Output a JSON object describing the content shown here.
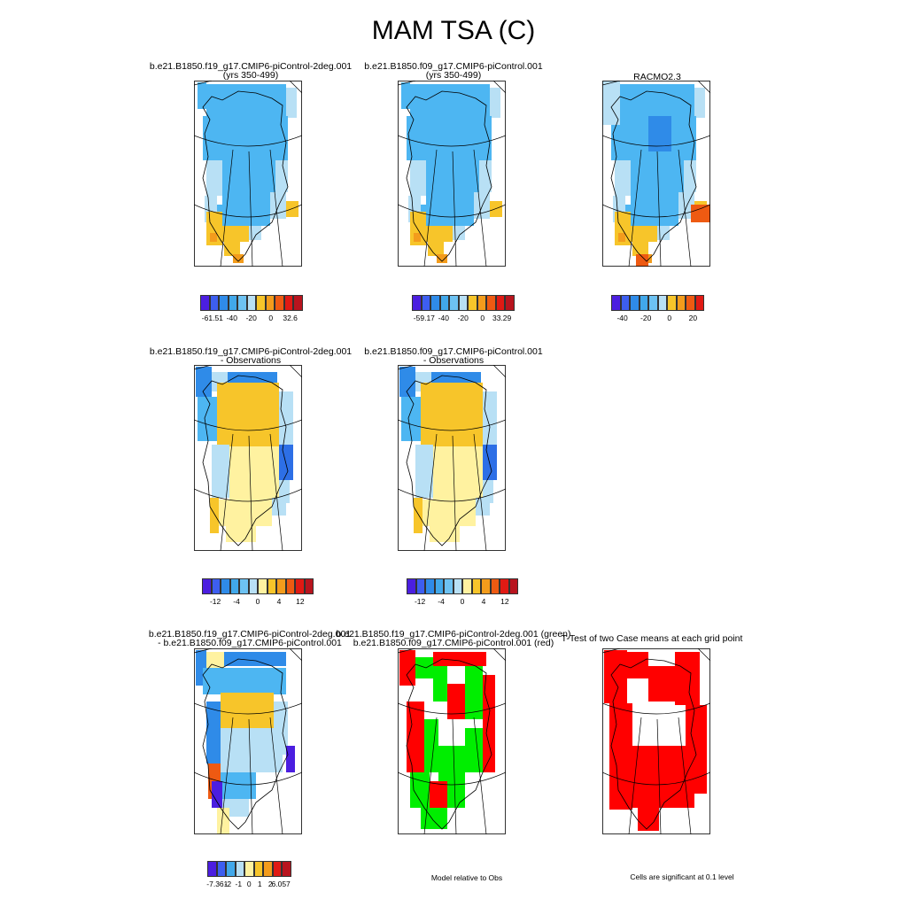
{
  "page_title": "MAM TSA (C)",
  "chart_data": {
    "type": "heatmap",
    "variable": "TSA",
    "season": "MAM",
    "units": "C",
    "panels": [
      {
        "id": "p1",
        "title_line1": "b.e21.B1850.f19_g17.CMIP6-piControl-2deg.001",
        "title_line2": "(yrs 350-499)",
        "colorbar": {
          "colors": [
            "#4b1ee0",
            "#3d5ef0",
            "#2f8be8",
            "#41a8ea",
            "#6dc2f2",
            "#b8e0f5",
            "#f7c52a",
            "#f39c1c",
            "#ee5a12",
            "#e01a14",
            "#b8141e"
          ],
          "tick_labels": [
            "-61.51",
            "-40",
            "-20",
            "0",
            "32.6"
          ],
          "min": -61.51,
          "max": 32.6
        }
      },
      {
        "id": "p2",
        "title_line1": "b.e21.B1850.f09_g17.CMIP6-piControl.001",
        "title_line2": "(yrs 350-499)",
        "colorbar": {
          "colors": [
            "#4b1ee0",
            "#3d5ef0",
            "#2f8be8",
            "#41a8ea",
            "#6dc2f2",
            "#b8e0f5",
            "#f7c52a",
            "#f39c1c",
            "#ee5a12",
            "#e01a14",
            "#b8141e"
          ],
          "tick_labels": [
            "-59.17",
            "-40",
            "-20",
            "0",
            "33.29"
          ],
          "min": -59.17,
          "max": 33.29
        }
      },
      {
        "id": "p3",
        "title_line1": "RACMO2.3",
        "title_line2": "",
        "colorbar": {
          "colors": [
            "#4b1ee0",
            "#3d5ef0",
            "#2f8be8",
            "#41a8ea",
            "#6dc2f2",
            "#b8e0f5",
            "#f7c52a",
            "#f39c1c",
            "#ee5a12",
            "#e01a14"
          ],
          "tick_labels": [
            "-40",
            "-20",
            "0",
            "20"
          ]
        }
      },
      {
        "id": "p4",
        "title_line1": "b.e21.B1850.f19_g17.CMIP6-piControl-2deg.001",
        "title_line2": "- Observations",
        "colorbar": {
          "colors": [
            "#4b1ee0",
            "#3d5ef0",
            "#2f8be8",
            "#41a8ea",
            "#6dc2f2",
            "#b8e0f5",
            "#fff2a0",
            "#f7c52a",
            "#f39c1c",
            "#ee5a12",
            "#e01a14",
            "#b8141e"
          ],
          "tick_labels": [
            "-12",
            "-4",
            "0",
            "4",
            "12"
          ]
        }
      },
      {
        "id": "p5",
        "title_line1": "b.e21.B1850.f09_g17.CMIP6-piControl.001",
        "title_line2": "- Observations",
        "colorbar": {
          "colors": [
            "#4b1ee0",
            "#3d5ef0",
            "#2f8be8",
            "#41a8ea",
            "#6dc2f2",
            "#b8e0f5",
            "#fff2a0",
            "#f7c52a",
            "#f39c1c",
            "#ee5a12",
            "#e01a14",
            "#b8141e"
          ],
          "tick_labels": [
            "-12",
            "-4",
            "0",
            "4",
            "12"
          ]
        }
      },
      {
        "id": "p7",
        "title_line1": "b.e21.B1850.f19_g17.CMIP6-piControl-2deg.001",
        "title_line2": "- b.e21.B1850.f09_g17.CMIP6-piControl.001",
        "colorbar": {
          "colors": [
            "#4b1ee0",
            "#3d5ef0",
            "#41a8ea",
            "#b8e0f5",
            "#fff2a0",
            "#f7c52a",
            "#f39c1c",
            "#e01a14",
            "#b8141e"
          ],
          "tick_labels": [
            "-7.361",
            "-2",
            "-1",
            "0",
            "1",
            "2",
            "6.057"
          ],
          "min": -7.361,
          "max": 6.057
        }
      },
      {
        "id": "p8",
        "title_line1": "b.e21.B1850.f19_g17.CMIP6-piControl-2deg.001 (green)",
        "title_line2": "b.e21.B1850.f09_g17.CMIP6-piControl.001 (red)",
        "note": "Model relative to Obs"
      },
      {
        "id": "p9",
        "title_line1": "T-Test of two Case means at each grid point",
        "title_line2": "",
        "note": "Cells are significant at 0.1 level"
      }
    ]
  }
}
